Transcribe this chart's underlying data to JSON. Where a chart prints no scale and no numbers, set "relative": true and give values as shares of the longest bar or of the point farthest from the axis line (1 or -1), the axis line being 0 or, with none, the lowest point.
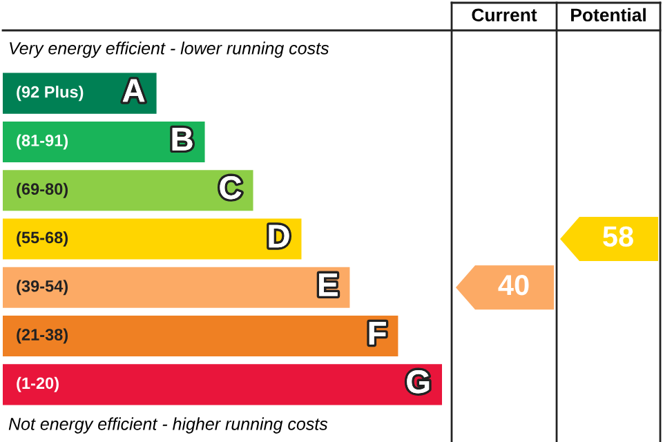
{
  "chart_data": {
    "type": "bar",
    "orientation": "horizontal",
    "relative": true,
    "categories": [
      "A",
      "B",
      "C",
      "D",
      "E",
      "F",
      "G"
    ],
    "values": [
      0.35,
      0.46,
      0.57,
      0.68,
      0.79,
      0.9,
      1
    ],
    "colors": [
      "#008054",
      "#19b459",
      "#8dce46",
      "#ffd500",
      "#fcaa65",
      "#ef8023",
      "#e9153b"
    ],
    "annotations": [
      "Very energy efficient - lower running costs",
      "Not energy efficient - higher running costs",
      "Current",
      "Potential",
      "(92 Plus)",
      "(81-91)",
      "(69-80)",
      "(55-68)",
      "(39-54)",
      "(21-38)",
      "(1-20)",
      "40",
      "58"
    ]
  }
}
